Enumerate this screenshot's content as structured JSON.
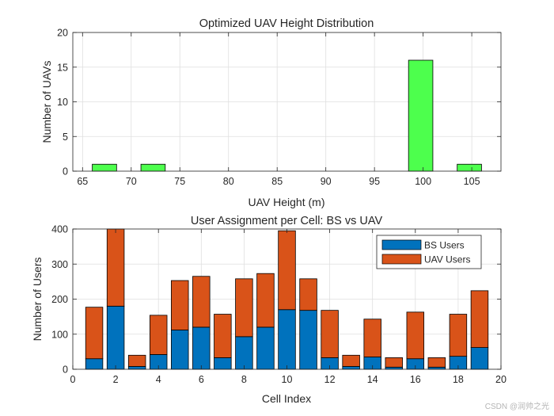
{
  "chart_data": [
    {
      "type": "bar",
      "title": "Optimized UAV Height Distribution",
      "xlabel": "UAV Height (m)",
      "ylabel": "Number of UAVs",
      "xlim": [
        64,
        108
      ],
      "ylim": [
        0,
        20
      ],
      "xticks": [
        65,
        70,
        75,
        80,
        85,
        90,
        95,
        100,
        105
      ],
      "yticks": [
        0,
        5,
        10,
        15,
        20
      ],
      "grid": true,
      "bin_width": 2.5,
      "x": [
        67.25,
        72.25,
        99.75,
        104.75
      ],
      "values": [
        1,
        1,
        16,
        1
      ],
      "color": "#4dff4d"
    },
    {
      "type": "bar",
      "stacked": true,
      "title": "User Assignment per Cell: BS vs UAV",
      "xlabel": "Cell Index",
      "ylabel": "Number of Users",
      "xlim": [
        0,
        20
      ],
      "ylim": [
        0,
        400
      ],
      "xticks": [
        0,
        2,
        4,
        6,
        8,
        10,
        12,
        14,
        16,
        18,
        20
      ],
      "yticks": [
        0,
        100,
        200,
        300,
        400
      ],
      "grid": true,
      "legend_position": "top-right",
      "categories": [
        1,
        2,
        3,
        4,
        5,
        6,
        7,
        8,
        9,
        10,
        11,
        12,
        13,
        14,
        15,
        16,
        17,
        18,
        19
      ],
      "series": [
        {
          "name": "BS Users",
          "color": "#0072bd",
          "values": [
            30,
            180,
            8,
            42,
            112,
            120,
            33,
            93,
            120,
            170,
            168,
            33,
            8,
            35,
            6,
            30,
            6,
            37,
            62
          ]
        },
        {
          "name": "UAV Users",
          "color": "#d95319",
          "values": [
            147,
            240,
            32,
            112,
            141,
            145,
            124,
            165,
            153,
            225,
            90,
            135,
            32,
            108,
            27,
            133,
            27,
            120,
            162
          ]
        }
      ]
    }
  ],
  "watermark": "CSDN @润帅之光"
}
